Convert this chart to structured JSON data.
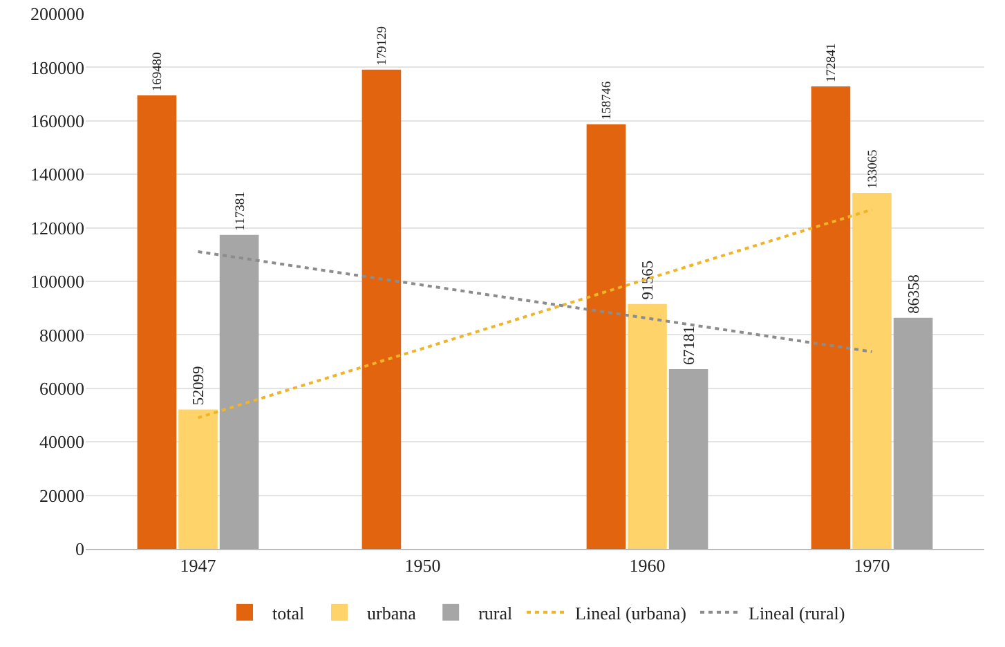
{
  "chart_data": {
    "type": "bar",
    "categories": [
      "1947",
      "1950",
      "1960",
      "1970"
    ],
    "series": [
      {
        "name": "total",
        "color": "#e2640f",
        "values": [
          169480,
          179129,
          158746,
          172841
        ],
        "value_labels": [
          "169480",
          "179129",
          "158746",
          "172841"
        ]
      },
      {
        "name": "urbana",
        "color": "#fdd36a",
        "values": [
          52099,
          null,
          91565,
          133065
        ],
        "value_labels": [
          "52099",
          null,
          "91565",
          "133065"
        ]
      },
      {
        "name": "rural",
        "color": "#a6a6a6",
        "values": [
          117381,
          null,
          67181,
          86358
        ],
        "value_labels": [
          "117381",
          null,
          "67181",
          "86358"
        ]
      },
      {
        "name": "Lineal (urbana)",
        "type": "line",
        "line_style": "dotted",
        "color": "#f0b428",
        "values": [
          49000,
          74900,
          100900,
          126800
        ]
      },
      {
        "name": "Lineal (rural)",
        "type": "line",
        "line_style": "dotted",
        "color": "#8c8c8c",
        "values": [
          111100,
          98600,
          86200,
          73700
        ]
      }
    ],
    "ylim": [
      0,
      200000
    ],
    "yticks": [
      0,
      20000,
      40000,
      60000,
      80000,
      100000,
      120000,
      140000,
      160000,
      180000,
      200000
    ],
    "grid": "y",
    "legend": "bottom",
    "marker": "none"
  }
}
